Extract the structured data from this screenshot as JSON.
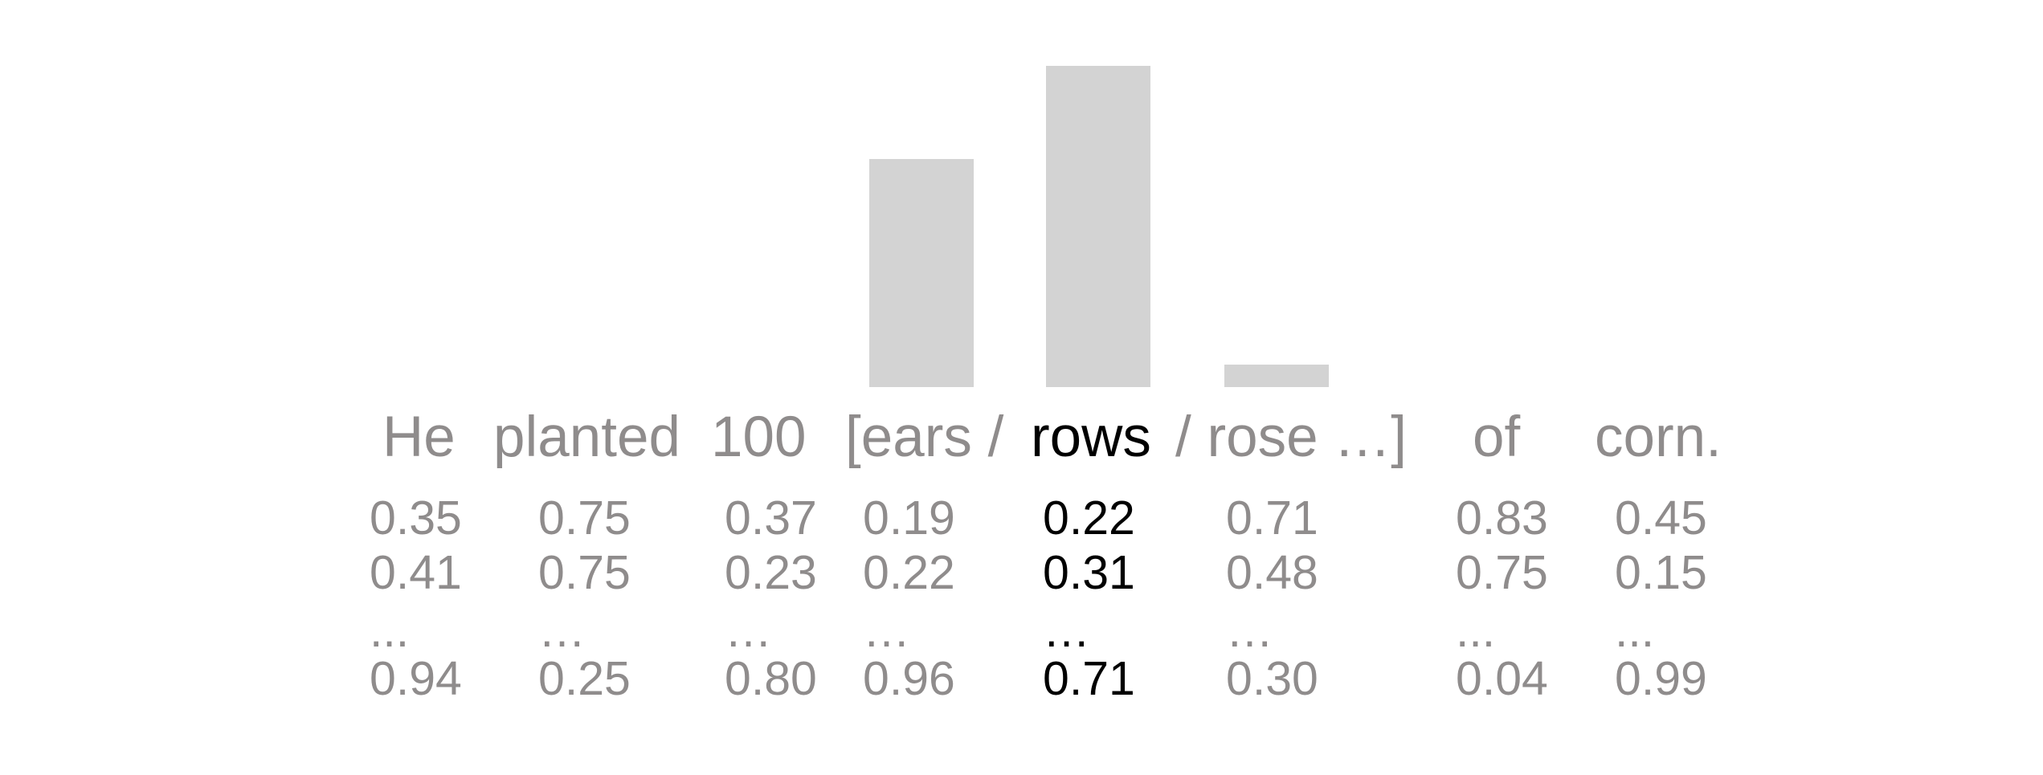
{
  "chart_data": {
    "type": "bar",
    "categories": [
      "ears",
      "rows",
      "rose"
    ],
    "values": [
      0.71,
      1.0,
      0.07
    ],
    "grid": false
  },
  "sentence": {
    "words": [
      {
        "text": "He",
        "highlight": false
      },
      {
        "text": "planted",
        "highlight": false
      },
      {
        "text": "100",
        "highlight": false
      },
      {
        "text": "[ears /",
        "highlight": false
      },
      {
        "text": "rows",
        "highlight": true
      },
      {
        "text": "/ rose …]",
        "highlight": false
      },
      {
        "text": "of",
        "highlight": false
      },
      {
        "text": "corn.",
        "highlight": false
      }
    ]
  },
  "embeddings": [
    {
      "values": [
        "0.35",
        "0.41",
        "...",
        "0.94"
      ],
      "highlight": false
    },
    {
      "values": [
        "0.75",
        "0.75",
        "…",
        "0.25"
      ],
      "highlight": false
    },
    {
      "values": [
        "0.37",
        "0.23",
        "…",
        "0.80"
      ],
      "highlight": false
    },
    {
      "values": [
        "0.19",
        "0.22",
        "…",
        "0.96"
      ],
      "highlight": false
    },
    {
      "values": [
        "0.22",
        "0.31",
        "…",
        "0.71"
      ],
      "highlight": true
    },
    {
      "values": [
        "0.71",
        "0.48",
        "…",
        "0.30"
      ],
      "highlight": false
    },
    {
      "values": [
        "0.83",
        "0.75",
        "...",
        "0.04"
      ],
      "highlight": false
    },
    {
      "values": [
        "0.45",
        "0.15",
        "...",
        "0.99"
      ],
      "highlight": false
    }
  ],
  "colors": {
    "bar": "#d3d3d3",
    "text_muted": "#8f8c8c",
    "text_highlight": "#000000"
  }
}
